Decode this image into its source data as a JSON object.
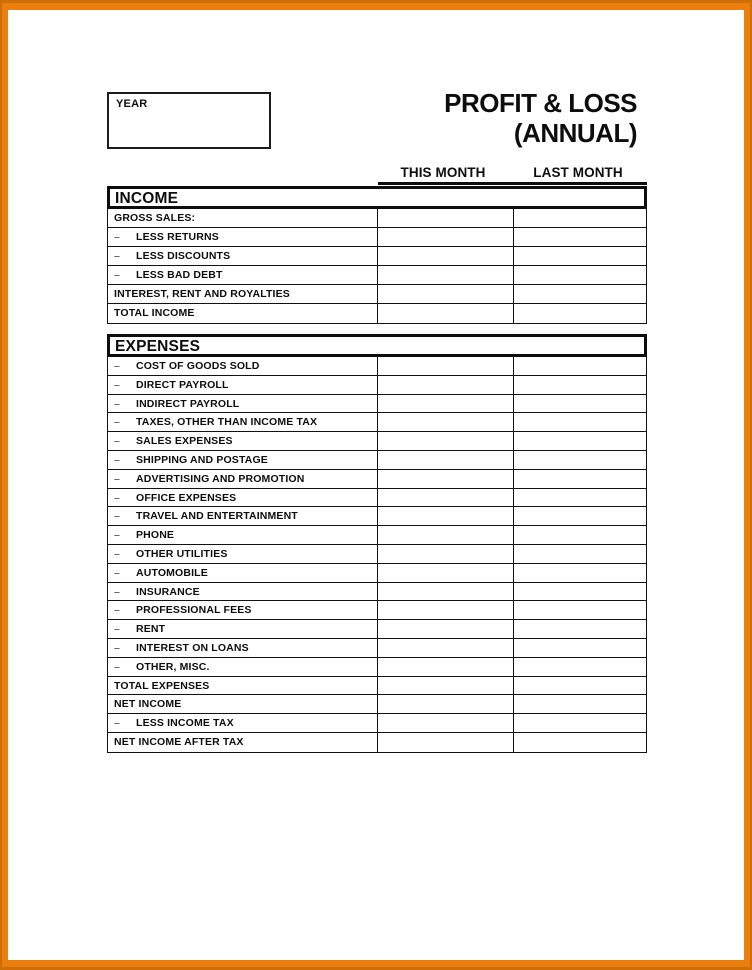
{
  "frame": {
    "bright_color": "#EA7F10",
    "dark_edge_color": "#CE6E06"
  },
  "year_box": {
    "label": "YEAR",
    "value": ""
  },
  "title": {
    "line1": "PROFIT & LOSS",
    "line2": "(ANNUAL)"
  },
  "columns": {
    "this_month": "THIS MONTH",
    "last_month": "LAST MONTH"
  },
  "dash": "–",
  "sections": [
    {
      "header": "INCOME",
      "rows": [
        {
          "label": "GROSS SALES:",
          "indent": false,
          "this_month": "",
          "last_month": ""
        },
        {
          "label": "LESS RETURNS",
          "indent": true,
          "this_month": "",
          "last_month": ""
        },
        {
          "label": "LESS DISCOUNTS",
          "indent": true,
          "this_month": "",
          "last_month": ""
        },
        {
          "label": "LESS BAD DEBT",
          "indent": true,
          "this_month": "",
          "last_month": ""
        },
        {
          "label": "INTEREST, RENT AND ROYALTIES",
          "indent": false,
          "this_month": "",
          "last_month": ""
        },
        {
          "label": "TOTAL INCOME",
          "indent": false,
          "this_month": "",
          "last_month": ""
        }
      ]
    },
    {
      "header": "EXPENSES",
      "rows": [
        {
          "label": "COST OF GOODS SOLD",
          "indent": true,
          "this_month": "",
          "last_month": ""
        },
        {
          "label": "DIRECT PAYROLL",
          "indent": true,
          "this_month": "",
          "last_month": ""
        },
        {
          "label": "INDIRECT PAYROLL",
          "indent": true,
          "this_month": "",
          "last_month": ""
        },
        {
          "label": "TAXES, OTHER THAN INCOME TAX",
          "indent": true,
          "this_month": "",
          "last_month": ""
        },
        {
          "label": "SALES EXPENSES",
          "indent": true,
          "this_month": "",
          "last_month": ""
        },
        {
          "label": "SHIPPING AND POSTAGE",
          "indent": true,
          "this_month": "",
          "last_month": ""
        },
        {
          "label": "ADVERTISING AND PROMOTION",
          "indent": true,
          "this_month": "",
          "last_month": ""
        },
        {
          "label": "OFFICE EXPENSES",
          "indent": true,
          "this_month": "",
          "last_month": ""
        },
        {
          "label": "TRAVEL AND ENTERTAINMENT",
          "indent": true,
          "this_month": "",
          "last_month": ""
        },
        {
          "label": "PHONE",
          "indent": true,
          "this_month": "",
          "last_month": ""
        },
        {
          "label": "OTHER UTILITIES",
          "indent": true,
          "this_month": "",
          "last_month": ""
        },
        {
          "label": "AUTOMOBILE",
          "indent": true,
          "this_month": "",
          "last_month": ""
        },
        {
          "label": "INSURANCE",
          "indent": true,
          "this_month": "",
          "last_month": ""
        },
        {
          "label": "PROFESSIONAL FEES",
          "indent": true,
          "this_month": "",
          "last_month": ""
        },
        {
          "label": "RENT",
          "indent": true,
          "this_month": "",
          "last_month": ""
        },
        {
          "label": "INTEREST ON LOANS",
          "indent": true,
          "this_month": "",
          "last_month": ""
        },
        {
          "label": "OTHER, MISC.",
          "indent": true,
          "this_month": "",
          "last_month": ""
        },
        {
          "label": "TOTAL EXPENSES",
          "indent": false,
          "this_month": "",
          "last_month": ""
        },
        {
          "label": "NET INCOME",
          "indent": false,
          "this_month": "",
          "last_month": ""
        },
        {
          "label": "LESS INCOME TAX",
          "indent": true,
          "this_month": "",
          "last_month": ""
        },
        {
          "label": "NET INCOME AFTER TAX",
          "indent": false,
          "this_month": "",
          "last_month": ""
        }
      ]
    }
  ]
}
